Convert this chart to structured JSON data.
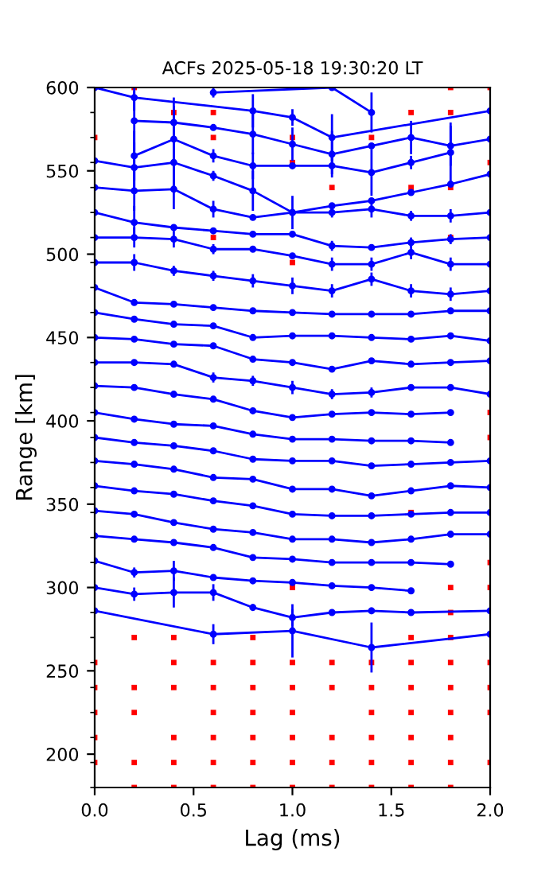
{
  "chart_data": {
    "type": "line",
    "title": "ACFs 2025-05-18 19:30:20 LT",
    "xlabel": "Lag (ms)",
    "ylabel": "Range [km]",
    "xlim": [
      0,
      2
    ],
    "ylim": [
      180,
      600
    ],
    "xticks": [
      {
        "value": 0,
        "label": "0.0"
      },
      {
        "value": 0.5,
        "label": "0.5"
      },
      {
        "value": 1,
        "label": "1.0"
      },
      {
        "value": 1.5,
        "label": "1.5"
      },
      {
        "value": 2,
        "label": "2.0"
      }
    ],
    "yticks": [
      {
        "value": 180,
        "label": null
      },
      {
        "value": 195,
        "label": null
      },
      200,
      {
        "value": 210,
        "label": null
      },
      {
        "value": 225,
        "label": null
      },
      {
        "value": 240,
        "label": null
      },
      250,
      {
        "value": 255,
        "label": null
      },
      {
        "value": 270,
        "label": null
      },
      {
        "value": 285,
        "label": null
      },
      300,
      {
        "value": 315,
        "label": null
      },
      {
        "value": 330,
        "label": null
      },
      {
        "value": 345,
        "label": null
      },
      350,
      {
        "value": 360,
        "label": null
      },
      {
        "value": 375,
        "label": null
      },
      {
        "value": 390,
        "label": null
      },
      400,
      {
        "value": 405,
        "label": null
      },
      {
        "value": 420,
        "label": null
      },
      {
        "value": 435,
        "label": null
      },
      450,
      {
        "value": 465,
        "label": null
      },
      {
        "value": 480,
        "label": null
      },
      {
        "value": 495,
        "label": null
      },
      500,
      {
        "value": 510,
        "label": null
      },
      {
        "value": 525,
        "label": null
      },
      {
        "value": 540,
        "label": null
      },
      550,
      {
        "value": 555,
        "label": null
      },
      {
        "value": 570,
        "label": null
      },
      {
        "value": 585,
        "label": null
      },
      600
    ],
    "x": [
      0,
      0.2,
      0.4,
      0.6,
      0.8,
      1.0,
      1.2,
      1.4,
      1.6,
      1.8,
      2.0
    ],
    "marker": "circle",
    "line_style": "solid",
    "grid": false,
    "series": [
      {
        "type": "scatter",
        "color": "#ff0000",
        "marker": "square",
        "x": [
          0.2,
          0.4,
          0.8,
          1.6,
          1.8,
          0,
          0.4,
          0.6,
          0.8,
          1.0,
          1.2,
          1.4,
          1.6,
          1.8,
          2.0,
          0,
          0.2,
          0.4,
          0.6,
          0.8,
          1.0,
          1.2,
          1.4,
          1.6,
          1.8,
          2.0,
          0,
          0.2,
          0.6,
          0.8,
          1.0,
          1.4,
          1.6,
          1.8,
          2.0,
          0,
          0.4,
          0.6,
          0.8,
          1.0,
          1.2,
          1.4,
          1.6,
          1.8,
          0,
          0.2,
          0.4,
          0.6,
          0.8,
          1.0,
          1.2,
          1.4,
          1.6,
          1.8,
          2.0,
          0.2,
          0.4,
          0.6,
          0.8,
          1.0,
          1.2,
          1.4,
          1.6,
          1.8,
          1.8,
          1.0,
          1.8,
          2.0,
          2.0,
          1.6,
          2.0,
          2.0,
          0.6,
          1.8,
          1.0,
          1.2,
          1.6,
          1.8,
          1.0,
          2.0,
          0,
          0.6,
          1.0,
          1.4,
          0.4,
          0.6,
          1.6,
          1.8,
          0.2,
          1.8,
          2.0
        ],
        "values": [
          270,
          270,
          270,
          270,
          270,
          255,
          255,
          255,
          255,
          255,
          255,
          255,
          255,
          255,
          255,
          240,
          240,
          240,
          240,
          240,
          240,
          240,
          240,
          240,
          240,
          240,
          225,
          225,
          225,
          225,
          225,
          225,
          225,
          225,
          225,
          210,
          210,
          210,
          210,
          210,
          210,
          210,
          210,
          210,
          195,
          195,
          195,
          195,
          195,
          195,
          195,
          195,
          195,
          195,
          195,
          180,
          180,
          180,
          180,
          180,
          180,
          180,
          180,
          180,
          285,
          300,
          300,
          300,
          315,
          345,
          390,
          405,
          510,
          510,
          495,
          540,
          540,
          540,
          555,
          555,
          570,
          570,
          570,
          570,
          585,
          585,
          585,
          585,
          600,
          600,
          600
        ]
      },
      {
        "x": [
          0,
          0.2,
          0.8,
          1.0,
          1.2,
          2.0
        ],
        "values": [
          600,
          594,
          586,
          582,
          570,
          586
        ],
        "errors": [
          null,
          8,
          10,
          5,
          14,
          null
        ],
        "color": "#0000ff"
      },
      {
        "x": [
          0.6,
          1.2,
          1.4
        ],
        "values": [
          597,
          600,
          585
        ],
        "errors": [
          3,
          null,
          12
        ],
        "color": "#0000ff"
      },
      {
        "x": [
          0.2,
          0.4,
          0.6,
          0.8,
          1.0,
          1.2,
          1.4,
          1.6,
          1.8,
          2.0
        ],
        "values": [
          580,
          579,
          576,
          572,
          566,
          560,
          565,
          570,
          565,
          569
        ],
        "errors": [
          18,
          15,
          null,
          12,
          10,
          14,
          null,
          10,
          12,
          null
        ],
        "color": "#0000ff"
      },
      {
        "x": [
          0.2,
          0.4,
          0.6,
          0.8,
          1.0,
          1.2,
          1.4,
          1.6,
          1.8
        ],
        "values": [
          559,
          569,
          559,
          553,
          553,
          553,
          549,
          555,
          561
        ],
        "errors": [
          15,
          20,
          4,
          8,
          null,
          5,
          14,
          4,
          18
        ],
        "color": "#0000ff"
      },
      {
        "values": [
          556,
          552,
          555,
          547,
          538,
          525,
          525,
          527,
          523,
          523,
          525
        ],
        "errors": [
          null,
          15,
          15,
          3,
          12,
          10,
          3,
          5,
          3,
          4,
          null
        ],
        "color": "#0000ff"
      },
      {
        "values": [
          540,
          538,
          539,
          527,
          522,
          525,
          529,
          532,
          537,
          542,
          548
        ],
        "errors": [
          null,
          12,
          12,
          5,
          null,
          null,
          null,
          null,
          null,
          null,
          null
        ],
        "color": "#0000ff"
      },
      {
        "values": [
          525,
          519,
          516,
          514,
          512,
          512,
          505,
          504,
          507,
          509,
          510
        ],
        "errors": [
          null,
          10,
          null,
          null,
          null,
          null,
          3,
          null,
          3,
          3,
          null
        ],
        "color": "#0000ff"
      },
      {
        "values": [
          510,
          510,
          509,
          503,
          503,
          499,
          494,
          494,
          501,
          494,
          494
        ],
        "errors": [
          null,
          6,
          5,
          3,
          null,
          null,
          4,
          4,
          4,
          4,
          null
        ],
        "color": "#0000ff"
      },
      {
        "values": [
          495,
          495,
          490,
          487,
          484,
          481,
          478,
          485,
          478,
          476,
          478
        ],
        "errors": [
          null,
          5,
          3,
          3,
          4,
          5,
          4,
          4,
          4,
          4,
          null
        ],
        "color": "#0000ff"
      },
      {
        "values": [
          480,
          471,
          470,
          468,
          466,
          465,
          464,
          464,
          464,
          466,
          466
        ],
        "color": "#0000ff"
      },
      {
        "values": [
          465,
          461,
          458,
          457,
          450,
          451,
          451,
          450,
          449,
          451,
          448
        ],
        "color": "#0000ff"
      },
      {
        "values": [
          450,
          449,
          446,
          445,
          437,
          435,
          431,
          436,
          434,
          435,
          436
        ],
        "color": "#0000ff"
      },
      {
        "values": [
          435,
          435,
          434,
          426,
          424,
          420,
          416,
          417,
          420,
          420,
          416
        ],
        "errors": [
          null,
          null,
          null,
          3,
          3,
          4,
          3,
          3,
          null,
          null,
          null
        ],
        "color": "#0000ff"
      },
      {
        "values": [
          421,
          420,
          416,
          413,
          406,
          402,
          404,
          405,
          404,
          405,
          null
        ],
        "color": "#0000ff"
      },
      {
        "values": [
          405,
          401,
          398,
          397,
          392,
          389,
          389,
          388,
          388,
          387,
          null
        ],
        "color": "#0000ff"
      },
      {
        "values": [
          390,
          387,
          385,
          382,
          377,
          376,
          376,
          373,
          374,
          375,
          376
        ],
        "color": "#0000ff"
      },
      {
        "values": [
          376,
          374,
          371,
          366,
          365,
          359,
          359,
          355,
          358,
          361,
          360
        ],
        "color": "#0000ff"
      },
      {
        "values": [
          361,
          358,
          356,
          352,
          349,
          344,
          343,
          343,
          344,
          345,
          345
        ],
        "color": "#0000ff"
      },
      {
        "values": [
          346,
          344,
          339,
          335,
          333,
          329,
          329,
          327,
          329,
          332,
          332
        ],
        "color": "#0000ff"
      },
      {
        "values": [
          331,
          329,
          327,
          324,
          318,
          317,
          315,
          315,
          315,
          314,
          null
        ],
        "color": "#0000ff"
      },
      {
        "values": [
          316,
          309,
          310,
          306,
          304,
          303,
          301,
          300,
          298,
          null,
          null
        ],
        "errors": [
          null,
          3,
          6,
          null,
          null,
          null,
          null,
          null,
          null,
          null,
          null
        ],
        "color": "#0000ff"
      },
      {
        "values": [
          300,
          296,
          297,
          297,
          288,
          282,
          285,
          286,
          285,
          null,
          286
        ],
        "errors": [
          null,
          4,
          9,
          5,
          2,
          5,
          null,
          2,
          null,
          null,
          null
        ],
        "color": "#0000ff"
      },
      {
        "x": [
          0,
          0.6,
          1.0,
          1.4,
          2.0
        ],
        "values": [
          286,
          272,
          274,
          264,
          272
        ],
        "errors": [
          null,
          6,
          16,
          15,
          null
        ],
        "color": "#0000ff"
      }
    ]
  }
}
